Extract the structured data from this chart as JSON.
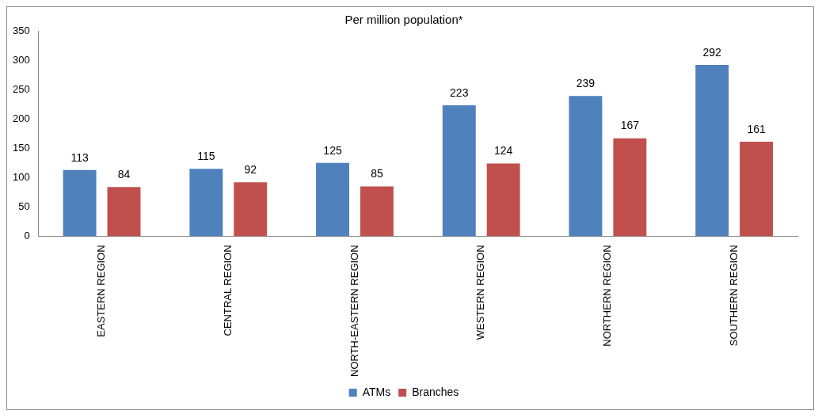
{
  "chart_data": {
    "type": "bar",
    "title": "Per million population*",
    "categories": [
      "EASTERN REGION",
      "CENTRAL REGION",
      "NORTH-EASTERN REGION",
      "WESTERN REGION",
      "NORTHERN REGION",
      "SOUTHERN REGION"
    ],
    "series": [
      {
        "name": "ATMs",
        "color": "#4f81bd",
        "values": [
          113,
          115,
          125,
          223,
          239,
          292
        ]
      },
      {
        "name": "Branches",
        "color": "#c0504d",
        "values": [
          84,
          92,
          85,
          124,
          167,
          161
        ]
      }
    ],
    "ylim": [
      0,
      350
    ],
    "yticks": [
      0,
      50,
      100,
      150,
      200,
      250,
      300,
      350
    ],
    "grid": false,
    "legend": "bottom",
    "data_labels": true
  }
}
